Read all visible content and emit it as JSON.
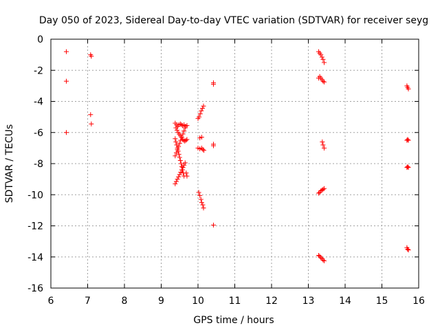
{
  "chart_data": {
    "type": "scatter",
    "title": "Day 050 of 2023, Sidereal Day-to-day VTEC variation (SDTVAR) for receiver seyg",
    "xlabel": "GPS time / hours",
    "ylabel": "SDTVAR / TECUs",
    "xlim": [
      6,
      16
    ],
    "ylim": [
      -16,
      0
    ],
    "xticks": [
      6,
      7,
      8,
      9,
      10,
      11,
      12,
      13,
      14,
      15,
      16
    ],
    "yticks": [
      0,
      -2,
      -4,
      -6,
      -8,
      -10,
      -12,
      -14,
      -16
    ],
    "xtick_labels": [
      "6",
      "7",
      "8",
      "9",
      "10",
      "11",
      "12",
      "13",
      "14",
      "15",
      "16"
    ],
    "ytick_labels": [
      "0",
      "-2",
      "-4",
      "-6",
      "-8",
      "-10",
      "-12",
      "-14",
      "-16"
    ],
    "grid": true,
    "marker": "+",
    "marker_color": "#ff0000",
    "series": [
      {
        "name": "SDTVAR",
        "points": [
          [
            6.42,
            -0.8
          ],
          [
            6.42,
            -2.7
          ],
          [
            6.42,
            -6.0
          ],
          [
            7.08,
            -1.0
          ],
          [
            7.1,
            -1.1
          ],
          [
            7.08,
            -4.85
          ],
          [
            7.1,
            -5.45
          ],
          [
            9.38,
            -5.4
          ],
          [
            9.42,
            -5.5
          ],
          [
            9.45,
            -5.6
          ],
          [
            9.48,
            -5.5
          ],
          [
            9.52,
            -5.45
          ],
          [
            9.55,
            -5.5
          ],
          [
            9.58,
            -5.55
          ],
          [
            9.62,
            -5.5
          ],
          [
            9.66,
            -5.6
          ],
          [
            9.7,
            -5.55
          ],
          [
            9.4,
            -5.7
          ],
          [
            9.43,
            -5.85
          ],
          [
            9.46,
            -6.0
          ],
          [
            9.49,
            -6.1
          ],
          [
            9.52,
            -6.2
          ],
          [
            9.55,
            -6.3
          ],
          [
            9.58,
            -6.45
          ],
          [
            9.61,
            -6.5
          ],
          [
            9.64,
            -6.55
          ],
          [
            9.67,
            -6.5
          ],
          [
            9.7,
            -6.45
          ],
          [
            9.38,
            -6.4
          ],
          [
            9.4,
            -6.6
          ],
          [
            9.42,
            -6.8
          ],
          [
            9.44,
            -7.0
          ],
          [
            9.46,
            -7.2
          ],
          [
            9.48,
            -7.4
          ],
          [
            9.5,
            -7.6
          ],
          [
            9.52,
            -7.8
          ],
          [
            9.54,
            -8.0
          ],
          [
            9.56,
            -8.2
          ],
          [
            9.58,
            -8.4
          ],
          [
            9.6,
            -8.6
          ],
          [
            9.62,
            -8.8
          ],
          [
            9.38,
            -7.5
          ],
          [
            9.41,
            -7.3
          ],
          [
            9.44,
            -7.1
          ],
          [
            9.47,
            -6.9
          ],
          [
            9.5,
            -6.7
          ],
          [
            9.53,
            -6.5
          ],
          [
            9.56,
            -6.3
          ],
          [
            9.59,
            -6.1
          ],
          [
            9.62,
            -5.9
          ],
          [
            9.65,
            -5.7
          ],
          [
            9.38,
            -9.3
          ],
          [
            9.41,
            -9.15
          ],
          [
            9.44,
            -9.0
          ],
          [
            9.47,
            -8.85
          ],
          [
            9.5,
            -8.7
          ],
          [
            9.53,
            -8.55
          ],
          [
            9.56,
            -8.4
          ],
          [
            9.59,
            -8.25
          ],
          [
            9.62,
            -8.1
          ],
          [
            9.65,
            -7.95
          ],
          [
            9.68,
            -8.6
          ],
          [
            9.7,
            -8.8
          ],
          [
            10.0,
            -5.1
          ],
          [
            10.03,
            -5.0
          ],
          [
            10.06,
            -4.8
          ],
          [
            10.09,
            -4.6
          ],
          [
            10.12,
            -4.45
          ],
          [
            10.15,
            -4.3
          ],
          [
            10.05,
            -6.35
          ],
          [
            10.1,
            -6.3
          ],
          [
            10.0,
            -7.0
          ],
          [
            10.05,
            -7.05
          ],
          [
            10.1,
            -7.0
          ],
          [
            10.13,
            -7.1
          ],
          [
            10.16,
            -7.15
          ],
          [
            10.02,
            -9.85
          ],
          [
            10.05,
            -10.05
          ],
          [
            10.08,
            -10.3
          ],
          [
            10.1,
            -10.5
          ],
          [
            10.13,
            -10.65
          ],
          [
            10.15,
            -10.85
          ],
          [
            10.42,
            -2.8
          ],
          [
            10.42,
            -2.9
          ],
          [
            10.42,
            -6.75
          ],
          [
            10.42,
            -6.85
          ],
          [
            10.42,
            -11.95
          ],
          [
            13.28,
            -0.8
          ],
          [
            13.31,
            -0.9
          ],
          [
            13.34,
            -1.0
          ],
          [
            13.37,
            -1.15
          ],
          [
            13.4,
            -1.3
          ],
          [
            13.43,
            -1.5
          ],
          [
            13.28,
            -2.5
          ],
          [
            13.31,
            -2.4
          ],
          [
            13.34,
            -2.5
          ],
          [
            13.37,
            -2.6
          ],
          [
            13.4,
            -2.7
          ],
          [
            13.43,
            -2.75
          ],
          [
            13.38,
            -6.6
          ],
          [
            13.4,
            -6.8
          ],
          [
            13.43,
            -7.0
          ],
          [
            13.28,
            -9.9
          ],
          [
            13.31,
            -9.85
          ],
          [
            13.34,
            -9.75
          ],
          [
            13.37,
            -9.7
          ],
          [
            13.4,
            -9.65
          ],
          [
            13.43,
            -9.6
          ],
          [
            13.28,
            -13.9
          ],
          [
            13.31,
            -13.95
          ],
          [
            13.34,
            -14.05
          ],
          [
            13.37,
            -14.1
          ],
          [
            13.4,
            -14.2
          ],
          [
            13.43,
            -14.25
          ],
          [
            15.68,
            -3.0
          ],
          [
            15.7,
            -3.1
          ],
          [
            15.72,
            -3.2
          ],
          [
            15.68,
            -6.5
          ],
          [
            15.7,
            -6.45
          ],
          [
            15.72,
            -6.5
          ],
          [
            15.68,
            -8.25
          ],
          [
            15.7,
            -8.2
          ],
          [
            15.72,
            -8.25
          ],
          [
            15.68,
            -13.4
          ],
          [
            15.7,
            -13.5
          ],
          [
            15.72,
            -13.55
          ]
        ]
      }
    ]
  }
}
